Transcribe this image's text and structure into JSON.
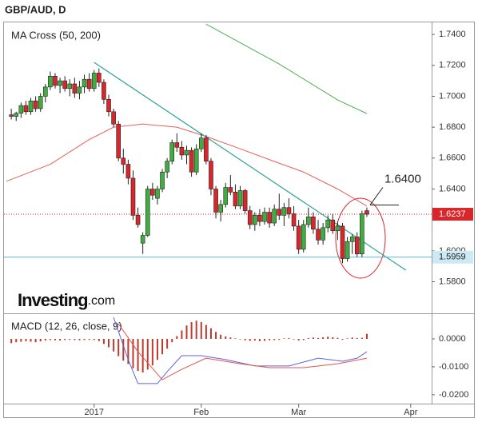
{
  "title": "GBP/AUD, D",
  "brand": {
    "name": "Investing",
    "suffix": ".com"
  },
  "chart_data": [
    {
      "type": "candlestick",
      "title": "MA Cross (50, 200)",
      "x": [
        -17,
        -16,
        -15,
        -14,
        -13,
        -12,
        -11,
        -10,
        -9,
        -8,
        -7,
        -6,
        -5,
        -4,
        -3,
        -2,
        -1,
        0,
        1,
        2,
        3,
        4,
        5,
        6,
        7,
        8,
        9,
        10,
        11,
        12,
        13,
        14,
        15,
        16,
        17,
        18,
        19,
        20,
        21,
        22,
        23,
        24,
        25,
        26,
        27,
        28,
        29,
        30,
        31,
        32,
        33,
        34,
        35,
        36,
        37,
        38,
        39,
        40,
        41,
        42,
        43,
        44,
        45,
        46,
        47,
        48,
        49,
        50,
        51,
        52,
        53,
        54,
        55,
        56
      ],
      "open": [
        1.688,
        1.687,
        1.689,
        1.694,
        1.69,
        1.697,
        1.692,
        1.7,
        1.706,
        1.713,
        1.707,
        1.71,
        1.705,
        1.708,
        1.702,
        1.706,
        1.711,
        1.705,
        1.715,
        1.709,
        1.698,
        1.69,
        1.682,
        1.66,
        1.656,
        1.647,
        1.623,
        1.605,
        1.61,
        1.64,
        1.634,
        1.64,
        1.651,
        1.658,
        1.67,
        1.667,
        1.662,
        1.665,
        1.651,
        1.666,
        1.673,
        1.658,
        1.64,
        1.625,
        1.63,
        1.641,
        1.638,
        1.629,
        1.639,
        1.626,
        1.617,
        1.623,
        1.619,
        1.625,
        1.618,
        1.627,
        1.623,
        1.628,
        1.624,
        1.616,
        1.601,
        1.617,
        1.622,
        1.614,
        1.607,
        1.615,
        1.62,
        1.613,
        1.616,
        1.595,
        1.606,
        1.609,
        1.598,
        1.626
      ],
      "high": [
        1.692,
        1.69,
        1.696,
        1.697,
        1.699,
        1.7,
        1.702,
        1.708,
        1.716,
        1.715,
        1.712,
        1.713,
        1.711,
        1.712,
        1.71,
        1.714,
        1.715,
        1.717,
        1.718,
        1.711,
        1.701,
        1.692,
        1.684,
        1.666,
        1.659,
        1.652,
        1.628,
        1.612,
        1.642,
        1.644,
        1.642,
        1.653,
        1.66,
        1.672,
        1.676,
        1.671,
        1.668,
        1.667,
        1.669,
        1.676,
        1.675,
        1.66,
        1.642,
        1.633,
        1.644,
        1.649,
        1.643,
        1.642,
        1.64,
        1.629,
        1.625,
        1.627,
        1.628,
        1.628,
        1.63,
        1.637,
        1.631,
        1.634,
        1.629,
        1.62,
        1.62,
        1.628,
        1.625,
        1.62,
        1.618,
        1.623,
        1.624,
        1.619,
        1.618,
        1.609,
        1.611,
        1.612,
        1.626,
        1.628
      ],
      "low": [
        1.685,
        1.684,
        1.686,
        1.688,
        1.688,
        1.69,
        1.69,
        1.696,
        1.704,
        1.705,
        1.702,
        1.703,
        1.7,
        1.699,
        1.698,
        1.702,
        1.703,
        1.703,
        1.706,
        1.695,
        1.687,
        1.68,
        1.658,
        1.65,
        1.643,
        1.62,
        1.615,
        1.598,
        1.609,
        1.633,
        1.63,
        1.638,
        1.647,
        1.656,
        1.664,
        1.659,
        1.656,
        1.648,
        1.649,
        1.664,
        1.656,
        1.636,
        1.621,
        1.619,
        1.628,
        1.636,
        1.627,
        1.627,
        1.624,
        1.614,
        1.613,
        1.616,
        1.617,
        1.615,
        1.616,
        1.62,
        1.616,
        1.621,
        1.613,
        1.598,
        1.599,
        1.615,
        1.611,
        1.604,
        1.604,
        1.612,
        1.611,
        1.607,
        1.592,
        1.593,
        1.598,
        1.596,
        1.596,
        1.622
      ],
      "close": [
        1.687,
        1.689,
        1.694,
        1.69,
        1.697,
        1.692,
        1.7,
        1.706,
        1.713,
        1.707,
        1.71,
        1.705,
        1.708,
        1.702,
        1.706,
        1.711,
        1.705,
        1.715,
        1.709,
        1.698,
        1.69,
        1.682,
        1.66,
        1.656,
        1.647,
        1.623,
        1.617,
        1.61,
        1.64,
        1.636,
        1.64,
        1.651,
        1.658,
        1.67,
        1.667,
        1.662,
        1.665,
        1.651,
        1.666,
        1.673,
        1.658,
        1.64,
        1.625,
        1.63,
        1.641,
        1.638,
        1.629,
        1.639,
        1.626,
        1.617,
        1.623,
        1.619,
        1.625,
        1.618,
        1.627,
        1.623,
        1.628,
        1.624,
        1.616,
        1.601,
        1.617,
        1.622,
        1.614,
        1.607,
        1.615,
        1.62,
        1.613,
        1.616,
        1.595,
        1.606,
        1.609,
        1.598,
        1.624,
        1.6237
      ],
      "up_color": "#3fae3f",
      "down_color": "#d9262a",
      "overlays": [
        {
          "color": "#e8605a",
          "x": [
            -18,
            -9,
            -1,
            4,
            10,
            17,
            23,
            30,
            36,
            43,
            50,
            56
          ],
          "values": [
            1.645,
            1.656,
            1.672,
            1.68,
            1.682,
            1.68,
            1.674,
            1.666,
            1.659,
            1.651,
            1.64,
            1.629
          ]
        },
        {
          "color": "#4caf50",
          "x": [
            23,
            38,
            50,
            56
          ],
          "values": [
            1.7467,
            1.7209,
            1.6976,
            1.6888
          ]
        }
      ],
      "trendline": {
        "color": "#2aa39a",
        "x": [
          0,
          64
        ],
        "values": [
          1.7219,
          1.5875
        ]
      },
      "price_lines": [
        {
          "value": 1.6237,
          "color": "#cc1f1f",
          "box_color": "#d9262a",
          "text_color": "#ffffff",
          "style": "dotted"
        },
        {
          "value": 1.5959,
          "color": "#5fb8d6",
          "box_color": "#cde9f6",
          "text_color": "#222222",
          "style": "solid"
        }
      ],
      "annotation": {
        "value": 1.64,
        "label": "1.6400",
        "x": 56
      },
      "xlim": [
        -18.5,
        69.3
      ],
      "ylim": [
        1.5596,
        1.7478
      ],
      "yticks": [
        {
          "value": 1.74,
          "label": "1.7400"
        },
        {
          "value": 1.72,
          "label": "1.7200"
        },
        {
          "value": 1.7,
          "label": "1.7000"
        },
        {
          "value": 1.68,
          "label": "1.6800"
        },
        {
          "value": 1.66,
          "label": "1.6600"
        },
        {
          "value": 1.64,
          "label": "1.6400"
        },
        {
          "value": 1.6,
          "label": "1.6000"
        },
        {
          "value": 1.58,
          "label": "1.5800"
        }
      ]
    },
    {
      "type": "macd",
      "title": "MACD (12, 26, close, 9)",
      "x": [
        -17,
        -16,
        -15,
        -14,
        -13,
        -12,
        -11,
        -10,
        -9,
        -8,
        -7,
        -6,
        -5,
        -4,
        -3,
        -2,
        -1,
        0,
        1,
        2,
        3,
        4,
        5,
        6,
        7,
        8,
        9,
        10,
        11,
        12,
        13,
        14,
        15,
        16,
        17,
        18,
        19,
        20,
        21,
        22,
        23,
        24,
        25,
        26,
        27,
        28,
        29,
        30,
        31,
        32,
        33,
        34,
        35,
        36,
        37,
        38,
        39,
        40,
        41,
        42,
        43,
        44,
        45,
        46,
        47,
        48,
        49,
        50,
        51,
        52,
        53,
        54,
        55,
        56
      ],
      "histogram": [
        -0.0015,
        -0.0012,
        -0.001,
        -0.0008,
        -0.001,
        -0.0012,
        -0.0009,
        -0.0006,
        -0.0004,
        -0.0005,
        -0.0006,
        -0.0004,
        -0.0003,
        -0.0004,
        -0.0005,
        -0.0004,
        -0.0003,
        -0.0004,
        -0.0008,
        -0.0018,
        -0.003,
        -0.0045,
        -0.0062,
        -0.0078,
        -0.009,
        -0.0105,
        -0.0115,
        -0.012,
        -0.011,
        -0.0095,
        -0.0075,
        -0.0055,
        -0.0035,
        -0.0012,
        0.001,
        0.003,
        0.0048,
        0.006,
        0.0065,
        0.006,
        0.005,
        0.0038,
        0.0025,
        0.0015,
        0.0009,
        0.0005,
        0.0002,
        -0.0002,
        -0.0005,
        -0.0007,
        -0.0006,
        -0.0008,
        -0.0007,
        -0.0005,
        -0.0004,
        -0.0003,
        0.0002,
        0.0003,
        -0.0002,
        -0.0006,
        -0.0004,
        0.0003,
        0.0005,
        0.0003,
        0.0006,
        0.0008,
        0.0006,
        0.0004,
        -0.0003,
        0.0002,
        0.0005,
        0.0003,
        0.0004,
        0.0018
      ],
      "hist_color": "#c0392b",
      "series": [
        {
          "color": "#5b63e0",
          "x": [
            4,
            7,
            9,
            13,
            15,
            18,
            22,
            27,
            33,
            40,
            46,
            51,
            54,
            56
          ],
          "values": [
            0.0077,
            -0.0074,
            -0.016,
            -0.016,
            -0.0117,
            -0.006,
            -0.006,
            -0.0074,
            -0.0097,
            -0.0097,
            -0.0069,
            -0.008,
            -0.0069,
            -0.0046
          ]
        },
        {
          "color": "#e8504a",
          "x": [
            5,
            9,
            14,
            18,
            23,
            30,
            36,
            43,
            50,
            56
          ],
          "values": [
            0.0054,
            -0.0046,
            -0.0146,
            -0.0109,
            -0.0069,
            -0.0089,
            -0.0103,
            -0.0103,
            -0.0089,
            -0.0069
          ]
        }
      ],
      "xlim": [
        -18.5,
        69.3
      ],
      "ylim": [
        -0.0226,
        0.0083
      ],
      "yticks": [
        {
          "value": 0,
          "label": "0.0000"
        },
        {
          "value": -0.01,
          "label": "-0.0100"
        },
        {
          "value": -0.02,
          "label": "-0.0200"
        }
      ],
      "xticks": [
        {
          "value": 0,
          "label": "2017"
        },
        {
          "value": 22,
          "label": "Feb"
        },
        {
          "value": 42,
          "label": "Mar"
        },
        {
          "value": 65,
          "label": "Apr"
        }
      ]
    }
  ]
}
